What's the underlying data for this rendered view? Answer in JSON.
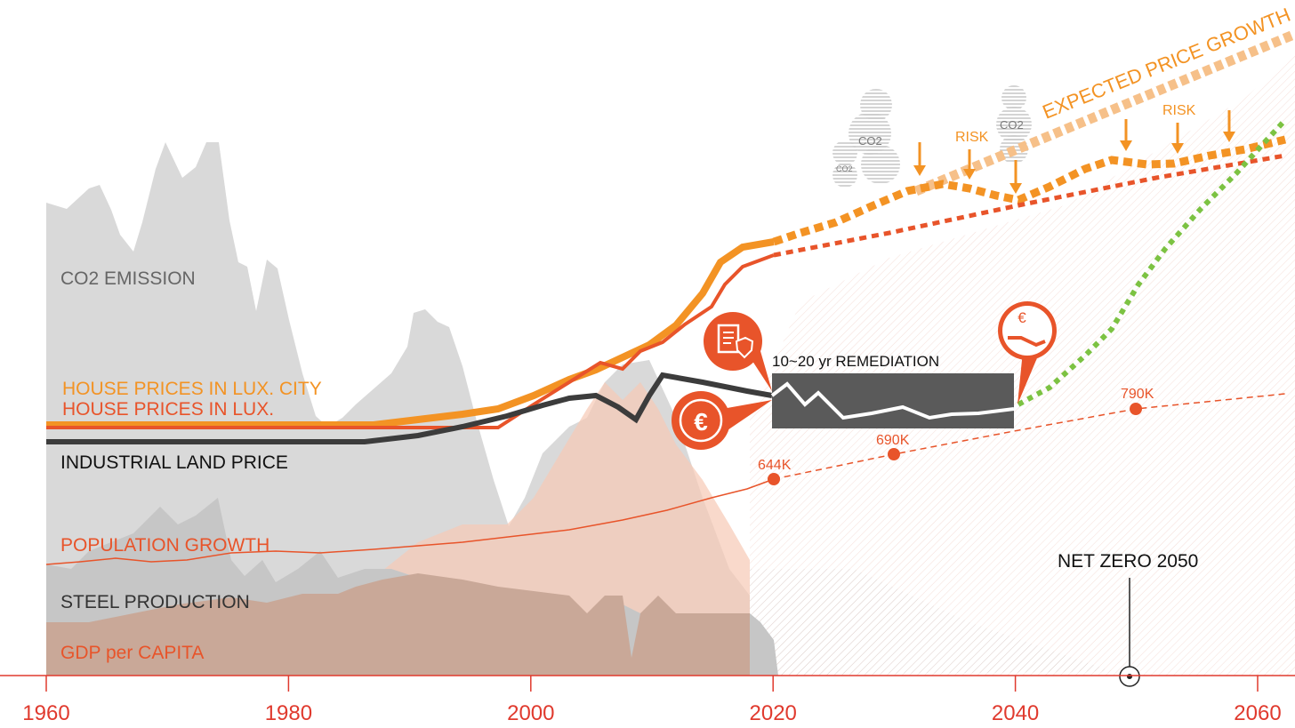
{
  "chart_data": {
    "type": "line",
    "x_axis": {
      "ticks": [
        1960,
        1980,
        2000,
        2020,
        2040,
        2060
      ],
      "range": [
        1960,
        2063
      ]
    },
    "colors": {
      "house_city": "#F39324",
      "house_lux": "#E8542A",
      "industrial": "#3C3C3C",
      "population": "#E8542A",
      "co2": "#D9D9D9",
      "steel": "#C6C6C6",
      "gdp": "#C9A898",
      "remediation_box": "#5A5A5A",
      "green": "#7CC242",
      "axis": "#E03A2E"
    },
    "series": [
      {
        "name": "CO2 EMISSION",
        "kind": "area"
      },
      {
        "name": "HOUSE PRICES IN LUX. CITY",
        "kind": "line"
      },
      {
        "name": "HOUSE PRICES IN LUX.",
        "kind": "line"
      },
      {
        "name": "INDUSTRIAL LAND PRICE",
        "kind": "line"
      },
      {
        "name": "POPULATION GROWTH",
        "kind": "line",
        "points": [
          {
            "x": 2020,
            "label": "644K"
          },
          {
            "x": 2030,
            "label": "690K"
          },
          {
            "x": 2050,
            "label": "790K"
          }
        ]
      },
      {
        "name": "STEEL PRODUCTION",
        "kind": "area"
      },
      {
        "name": "GDP per CAPITA",
        "kind": "area"
      }
    ],
    "annotations": {
      "remediation": "10~20 yr REMEDIATION",
      "expected": "EXPECTED PRICE GROWTH",
      "risk": "RISK",
      "co2": "CO2",
      "net_zero": "NET ZERO 2050"
    }
  }
}
